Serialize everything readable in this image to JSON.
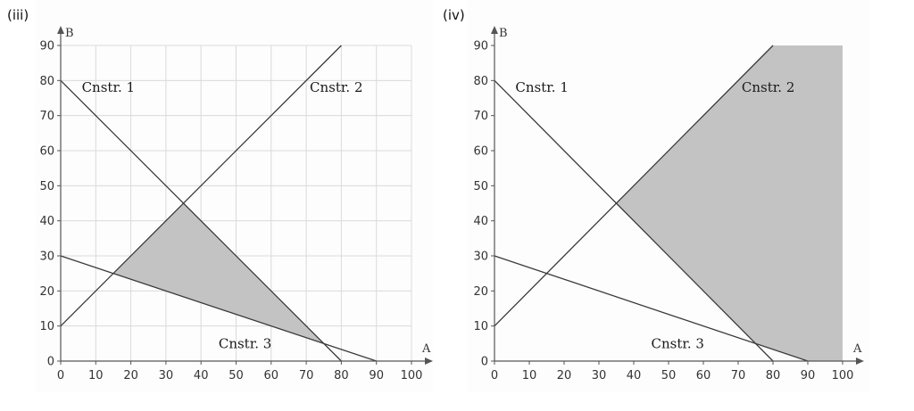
{
  "chart_data": [
    {
      "type": "line",
      "panel_label": "(iii)",
      "xlabel": "A",
      "ylabel": "B",
      "xlim": [
        0,
        100
      ],
      "ylim": [
        0,
        90
      ],
      "x_ticks": [
        "0",
        "10",
        "20",
        "30",
        "40",
        "50",
        "60",
        "70",
        "80",
        "90",
        "100"
      ],
      "y_ticks": [
        "0",
        "10",
        "20",
        "30",
        "40",
        "50",
        "60",
        "70",
        "80",
        "90"
      ],
      "grid": true,
      "series": [
        {
          "name": "Cnstr. 1",
          "x": [
            0,
            80
          ],
          "y": [
            80,
            0
          ]
        },
        {
          "name": "Cnstr. 2",
          "x": [
            0,
            80
          ],
          "y": [
            10,
            90
          ]
        },
        {
          "name": "Cnstr. 3",
          "x": [
            0,
            90
          ],
          "y": [
            30,
            0
          ]
        }
      ],
      "shaded_region": {
        "x": [
          15,
          35,
          75
        ],
        "y": [
          25,
          45,
          5
        ]
      },
      "annotations": [
        {
          "text": "Cnstr. 1",
          "x": 6,
          "y": 78
        },
        {
          "text": "Cnstr. 2",
          "x": 71,
          "y": 78
        },
        {
          "text": "Cnstr. 3",
          "x": 45,
          "y": 5
        }
      ]
    },
    {
      "type": "line",
      "panel_label": "(iv)",
      "xlabel": "A",
      "ylabel": "B",
      "xlim": [
        0,
        100
      ],
      "ylim": [
        0,
        90
      ],
      "x_ticks": [
        "0",
        "10",
        "20",
        "30",
        "40",
        "50",
        "60",
        "70",
        "80",
        "90",
        "100"
      ],
      "y_ticks": [
        "0",
        "10",
        "20",
        "30",
        "40",
        "50",
        "60",
        "70",
        "80",
        "90"
      ],
      "grid": false,
      "series": [
        {
          "name": "Cnstr. 1",
          "x": [
            0,
            80
          ],
          "y": [
            80,
            0
          ]
        },
        {
          "name": "Cnstr. 2",
          "x": [
            0,
            80
          ],
          "y": [
            10,
            90
          ]
        },
        {
          "name": "Cnstr. 3",
          "x": [
            0,
            90
          ],
          "y": [
            30,
            0
          ]
        }
      ],
      "shaded_region": {
        "x": [
          35,
          80,
          100,
          100,
          90,
          75
        ],
        "y": [
          45,
          90,
          90,
          0,
          0,
          5
        ]
      },
      "annotations": [
        {
          "text": "Cnstr. 1",
          "x": 6,
          "y": 78
        },
        {
          "text": "Cnstr. 2",
          "x": 71,
          "y": 78
        },
        {
          "text": "Cnstr. 3",
          "x": 45,
          "y": 5
        }
      ]
    }
  ]
}
